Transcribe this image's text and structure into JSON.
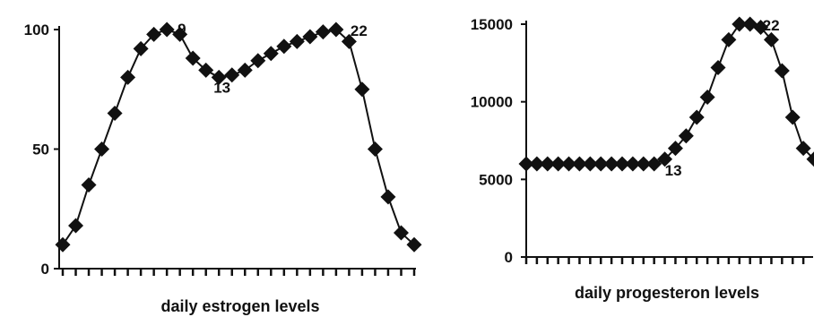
{
  "chart_data": [
    {
      "type": "line",
      "xlabel": "daily estrogen levels",
      "ylabel": "",
      "ylim": [
        0,
        100
      ],
      "yticks": [
        0,
        50,
        100
      ],
      "x": [
        1,
        2,
        3,
        4,
        5,
        6,
        7,
        8,
        9,
        10,
        11,
        12,
        13,
        14,
        15,
        16,
        17,
        18,
        19,
        20,
        21,
        22,
        23,
        24,
        25,
        26,
        27,
        28
      ],
      "values": [
        10,
        18,
        35,
        50,
        65,
        80,
        92,
        98,
        100,
        98,
        88,
        83,
        80,
        81,
        83,
        87,
        90,
        93,
        95,
        97,
        99,
        100,
        95,
        75,
        50,
        30,
        15,
        10
      ],
      "marker": "diamond",
      "color": "#111111",
      "annotations": [
        {
          "x": 9,
          "y": 100,
          "text": "9"
        },
        {
          "x": 13,
          "y": 80,
          "text": "13"
        },
        {
          "x": 22,
          "y": 100,
          "text": "22"
        }
      ]
    },
    {
      "type": "line",
      "xlabel": "daily progesteron levels",
      "ylabel": "",
      "ylim": [
        0,
        15000
      ],
      "yticks": [
        0,
        5000,
        10000,
        15000
      ],
      "x": [
        1,
        2,
        3,
        4,
        5,
        6,
        7,
        8,
        9,
        10,
        11,
        12,
        13,
        14,
        15,
        16,
        17,
        18,
        19,
        20,
        21,
        22,
        23,
        24,
        25,
        26,
        27,
        28
      ],
      "values": [
        6000,
        6000,
        6000,
        6000,
        6000,
        6000,
        6000,
        6000,
        6000,
        6000,
        6000,
        6000,
        6000,
        6300,
        7000,
        7800,
        9000,
        10300,
        12200,
        14000,
        15000,
        15000,
        14800,
        14000,
        12000,
        9000,
        7000,
        6300
      ],
      "marker": "diamond",
      "color": "#111111",
      "annotations": [
        {
          "x": 13,
          "y": 6000,
          "text": "13"
        },
        {
          "x": 22,
          "y": 15000,
          "text": "22"
        }
      ]
    }
  ]
}
